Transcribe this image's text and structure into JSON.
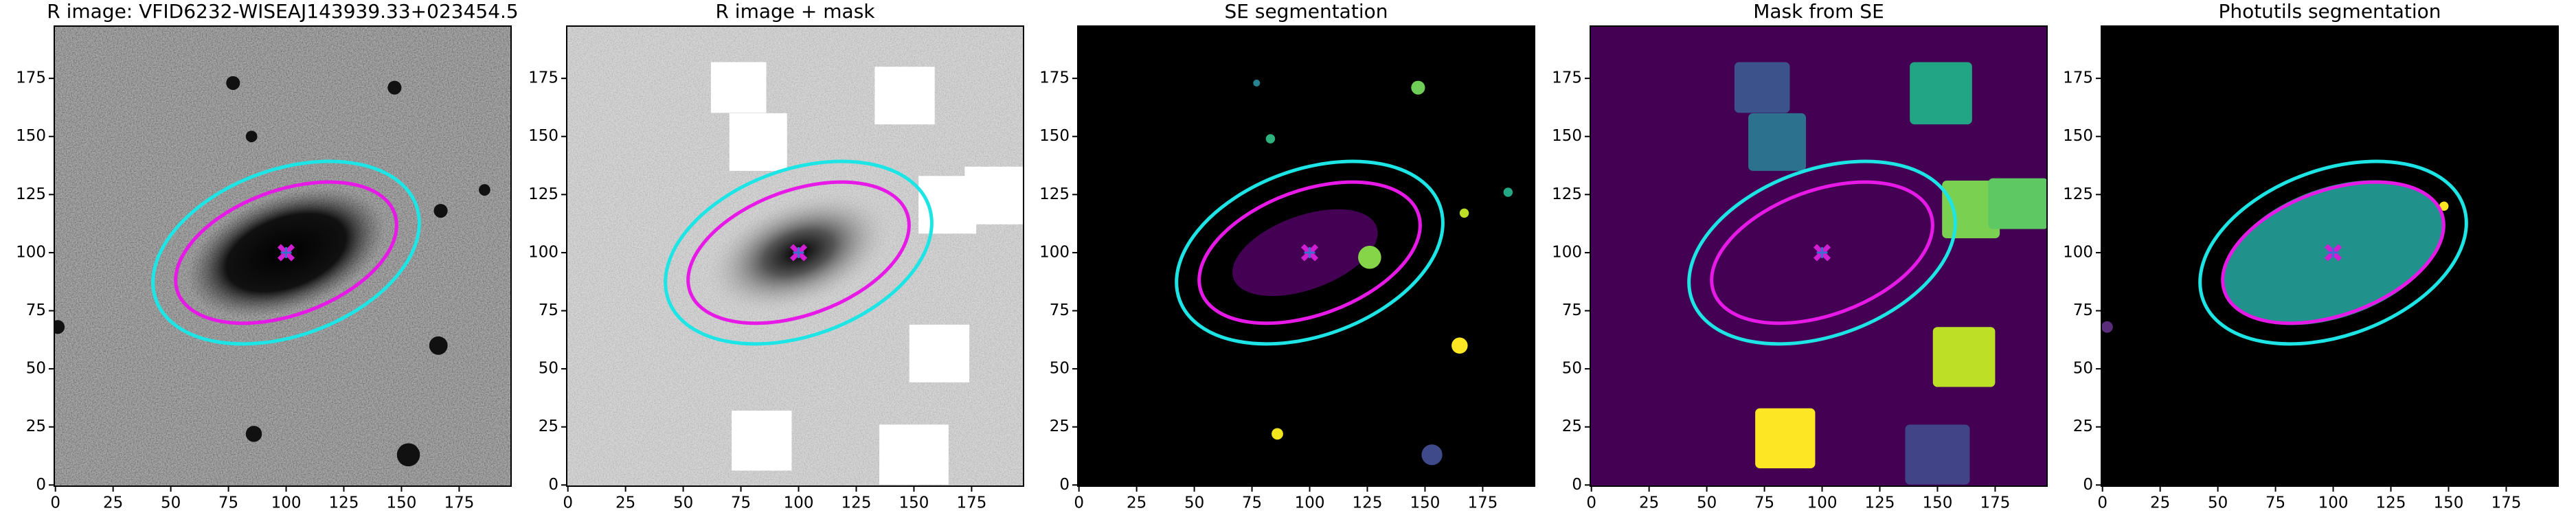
{
  "chart_data": [
    {
      "type": "image",
      "title": "R image: VFID6232-WISEAJ143939.33+023454.5",
      "xlim": [
        -0.5,
        197.5
      ],
      "ylim": [
        -0.5,
        197.5
      ],
      "xticks": [
        0,
        25,
        50,
        75,
        100,
        125,
        150,
        175
      ],
      "yticks": [
        0,
        25,
        50,
        75,
        100,
        125,
        150,
        175
      ]
    },
    {
      "type": "image",
      "title": "R image + mask",
      "xlim": [
        -0.5,
        197.5
      ],
      "ylim": [
        -0.5,
        197.5
      ],
      "xticks": [
        0,
        25,
        50,
        75,
        100,
        125,
        150,
        175
      ],
      "yticks": [
        0,
        25,
        50,
        75,
        100,
        125,
        150,
        175
      ]
    },
    {
      "type": "image",
      "title": "SE segmentation",
      "xlim": [
        -0.5,
        197.5
      ],
      "ylim": [
        -0.5,
        197.5
      ],
      "xticks": [
        0,
        25,
        50,
        75,
        100,
        125,
        150,
        175
      ],
      "yticks": [
        0,
        25,
        50,
        75,
        100,
        125,
        150,
        175
      ]
    },
    {
      "type": "image",
      "title": "Mask from SE",
      "xlim": [
        -0.5,
        197.5
      ],
      "ylim": [
        -0.5,
        197.5
      ],
      "xticks": [
        0,
        25,
        50,
        75,
        100,
        125,
        150,
        175
      ],
      "yticks": [
        0,
        25,
        50,
        75,
        100,
        125,
        150,
        175
      ]
    },
    {
      "type": "image",
      "title": "Photutils segmentation",
      "xlim": [
        -0.5,
        197.5
      ],
      "ylim": [
        -0.5,
        197.5
      ],
      "xticks": [
        0,
        25,
        50,
        75,
        100,
        125,
        150,
        175
      ],
      "yticks": [
        0,
        25,
        50,
        75,
        100,
        125,
        150,
        175
      ]
    }
  ]
}
